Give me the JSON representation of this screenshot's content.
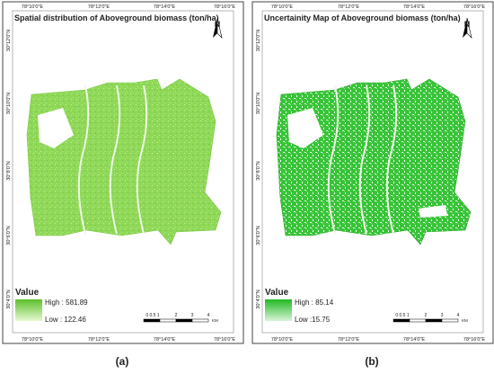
{
  "panels": [
    {
      "title": "Spatial distribution of Aboveground biomass (ton/ha)",
      "legend": {
        "title": "Value",
        "high": "High : 581.89",
        "low": "Low : 122.46"
      },
      "caption": "(a)"
    },
    {
      "title": "Uncertainity Map of Aboveground biomass (ton/ha)",
      "legend": {
        "title": "Value",
        "high": "High : 85.14",
        "low": "Low :15.75"
      },
      "caption": "(b)"
    }
  ],
  "lon_labels": [
    "78°10'0\"E",
    "78°12'0\"E",
    "78°14'0\"E",
    "78°16'0\"E"
  ],
  "lat_labels": [
    "30°12'0\"N",
    "30°10'0\"N",
    "30°8'0\"N",
    "30°6'0\"N",
    "30°4'0\"N"
  ],
  "scale_labels": [
    "0 0.5 1",
    "2",
    "3",
    "4"
  ],
  "scale_unit": "KM",
  "north": "N"
}
